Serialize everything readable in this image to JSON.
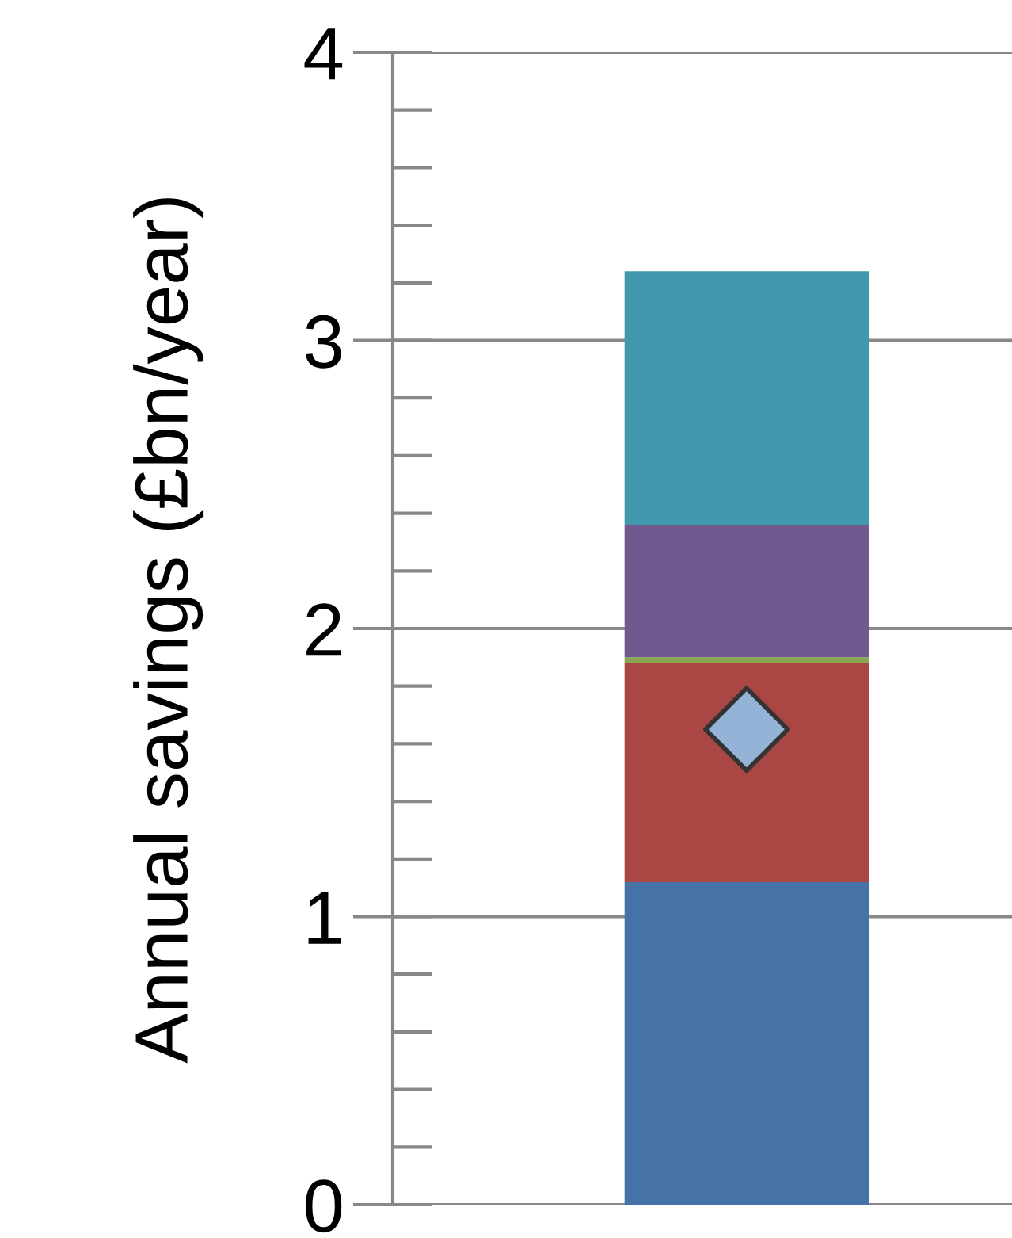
{
  "chart_data": {
    "type": "bar",
    "stacked": true,
    "ylabel": "Annual savings (£bn/year)",
    "categories": [
      null
    ],
    "series": [
      {
        "color": "#4572a7",
        "values": [
          1.12
        ]
      },
      {
        "color": "#aa4643",
        "values": [
          0.76
        ]
      },
      {
        "color": "#89a54e",
        "values": [
          0.02
        ]
      },
      {
        "color": "#71588f",
        "values": [
          0.46
        ]
      },
      {
        "color": "#4198af",
        "values": [
          0.88
        ]
      },
      {
        "type": "scatter",
        "marker": "diamond",
        "color": "#95b3d7",
        "values": [
          1.65
        ]
      }
    ],
    "ylim": [
      0,
      4
    ],
    "yticks": [
      0,
      1,
      2,
      3,
      4
    ],
    "grid": "y"
  }
}
